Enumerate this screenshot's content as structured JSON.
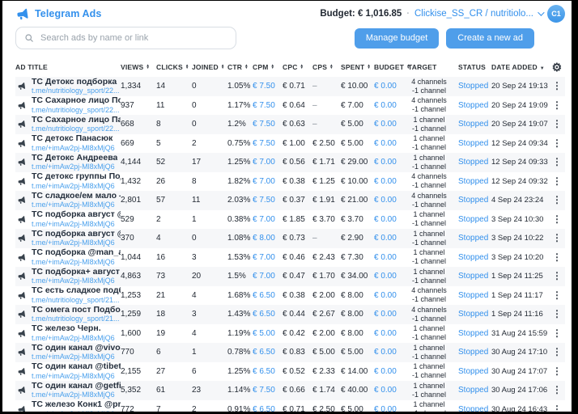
{
  "header": {
    "app_title": "Telegram Ads",
    "budget_label": "Budget:",
    "budget_value": "€ 1,016.85",
    "account": "Clickise_SS_CR / nutritiolo...",
    "avatar": "C1"
  },
  "toolbar": {
    "search_placeholder": "Search ads by name or link",
    "manage_budget_label": "Manage budget",
    "create_ad_label": "Create a new ad"
  },
  "icons": {
    "logo": "megaphone-icon",
    "row": "megaphone-icon",
    "search": "search-icon",
    "account_chevron": "chevron-down-icon",
    "settings": "gear-icon",
    "row_menu": "kebab-menu-icon",
    "sortable": "sort-arrows-icon",
    "date_sorted": "sort-desc-icon"
  },
  "colors": {
    "accent": "#3390ec",
    "button": "#4f9eea",
    "link": "#4aa0ec",
    "row_stripe": "#f6f7f9",
    "text": "#1f2630",
    "muted": "#99a2ab",
    "frame": "#000000"
  },
  "table": {
    "columns": [
      {
        "key": "title",
        "label": "AD TITLE",
        "sort": "none"
      },
      {
        "key": "views",
        "label": "VIEWS",
        "sort": "both"
      },
      {
        "key": "clicks",
        "label": "CLICKS",
        "sort": "both"
      },
      {
        "key": "joined",
        "label": "JOINED",
        "sort": "both"
      },
      {
        "key": "ctr",
        "label": "CTR",
        "sort": "both"
      },
      {
        "key": "cpm",
        "label": "CPM",
        "sort": "both"
      },
      {
        "key": "cpc",
        "label": "CPC",
        "sort": "both"
      },
      {
        "key": "cps",
        "label": "CPS",
        "sort": "both"
      },
      {
        "key": "spent",
        "label": "SPENT",
        "sort": "both"
      },
      {
        "key": "budget",
        "label": "BUDGET",
        "sort": "both"
      },
      {
        "key": "target",
        "label": "TARGET",
        "sort": "none"
      },
      {
        "key": "status",
        "label": "STATUS",
        "sort": "none"
      },
      {
        "key": "date",
        "label": "DATE ADDED",
        "sort": "desc"
      }
    ],
    "rows": [
      {
        "title": "ТС Детокс подборка",
        "link": "t.me/nutritiology_sport/22...",
        "views": "1,334",
        "clicks": "14",
        "joined": "0",
        "ctr": "1.05%",
        "cpm": "€ 7.50",
        "cpc": "€ 0.71",
        "cps": "–",
        "spent": "€ 10.00",
        "budget": "€ 0.00",
        "target1": "4 channels",
        "target2": "-1 channel",
        "status": "Stopped",
        "date": "20 Sep 24 19:13"
      },
      {
        "title": "ТС Сахарное лицо Под...",
        "link": "t.me/nutritiology_sport/22...",
        "views": "937",
        "clicks": "11",
        "joined": "0",
        "ctr": "1.17%",
        "cpm": "€ 7.50",
        "cpc": "€ 0.64",
        "cps": "–",
        "spent": "€ 7.00",
        "budget": "€ 0.00",
        "target1": "4 channels",
        "target2": "-1 channel",
        "status": "Stopped",
        "date": "20 Sep 24 19:09"
      },
      {
        "title": "ТС Сахарное лицо Пан...",
        "link": "t.me/nutritiology_sport/22...",
        "views": "668",
        "clicks": "8",
        "joined": "0",
        "ctr": "1.2%",
        "cpm": "€ 7.50",
        "cpc": "€ 0.63",
        "cps": "–",
        "spent": "€ 5.00",
        "budget": "€ 0.00",
        "target1": "1 channel",
        "target2": "-1 channel",
        "status": "Stopped",
        "date": "20 Sep 24 19:07"
      },
      {
        "title": "ТС детокс Панасюк",
        "link": "t.me/+imAw2pj-Ml8xMjQ6",
        "views": "669",
        "clicks": "5",
        "joined": "2",
        "ctr": "0.75%",
        "cpm": "€ 7.50",
        "cpc": "€ 1.00",
        "cps": "€ 2.50",
        "spent": "€ 5.00",
        "budget": "€ 0.00",
        "target1": "1 channel",
        "target2": "-1 channel",
        "status": "Stopped",
        "date": "12 Sep 24 09:34"
      },
      {
        "title": "ТС Детокс Андреева",
        "link": "t.me/+imAw2pj-Ml8xMjQ6",
        "views": "4,144",
        "clicks": "52",
        "joined": "17",
        "ctr": "1.25%",
        "cpm": "€ 7.00",
        "cpc": "€ 0.56",
        "cps": "€ 1.71",
        "spent": "€ 29.00",
        "budget": "€ 0.00",
        "target1": "1 channel",
        "target2": "-1 channel",
        "status": "Stopped",
        "date": "12 Sep 24 09:33"
      },
      {
        "title": "ТС детокс группы Под...",
        "link": "t.me/+imAw2pj-Ml8xMjQ6",
        "views": "1,432",
        "clicks": "26",
        "joined": "8",
        "ctr": "1.82%",
        "cpm": "€ 7.00",
        "cpc": "€ 0.38",
        "cps": "€ 1.25",
        "spent": "€ 10.00",
        "budget": "€ 0.00",
        "target1": "4 channels",
        "target2": "-1 channel",
        "status": "Stopped",
        "date": "12 Sep 24 09:32"
      },
      {
        "title": "ТС сладкое/ем мало - ...",
        "link": "t.me/+imAw2pj-Ml8xMjQ6",
        "views": "2,801",
        "clicks": "57",
        "joined": "11",
        "ctr": "2.03%",
        "cpm": "€ 7.50",
        "cpc": "€ 0.37",
        "cps": "€ 1.91",
        "spent": "€ 21.00",
        "budget": "€ 0.00",
        "target1": "4 channels",
        "target2": "-1 channel",
        "status": "Stopped",
        "date": "4 Sep 24 23:24"
      },
      {
        "title": "ТС подборка август @...",
        "link": "t.me/+imAw2pj-Ml8xMjQ6",
        "views": "529",
        "clicks": "2",
        "joined": "1",
        "ctr": "0.38%",
        "cpm": "€ 7.00",
        "cpc": "€ 1.85",
        "cps": "€ 3.70",
        "spent": "€ 3.70",
        "budget": "€ 0.00",
        "target1": "1 channel",
        "target2": "-1 channel",
        "status": "Stopped",
        "date": "3 Sep 24 10:30"
      },
      {
        "title": "ТС подборка август @l...",
        "link": "t.me/+imAw2pj-Ml8xMjQ6",
        "views": "370",
        "clicks": "4",
        "joined": "0",
        "ctr": "1.08%",
        "cpm": "€ 8.00",
        "cpc": "€ 0.73",
        "cps": "–",
        "spent": "€ 2.90",
        "budget": "€ 0.00",
        "target1": "1 channel",
        "target2": "-1 channel",
        "status": "Stopped",
        "date": "3 Sep 24 10:22"
      },
      {
        "title": "ТС подборка @man_ac...",
        "link": "t.me/+imAw2pj-Ml8xMjQ6",
        "views": "1,044",
        "clicks": "16",
        "joined": "3",
        "ctr": "1.53%",
        "cpm": "€ 7.00",
        "cpc": "€ 0.46",
        "cps": "€ 2.43",
        "spent": "€ 7.30",
        "budget": "€ 0.00",
        "target1": "1 channel",
        "target2": "-1 channel",
        "status": "Stopped",
        "date": "3 Sep 24 10:20"
      },
      {
        "title": "ТС подборка+ август",
        "link": "t.me/+imAw2pj-Ml8xMjQ6",
        "views": "4,863",
        "clicks": "73",
        "joined": "20",
        "ctr": "1.5%",
        "cpm": "€ 7.00",
        "cpc": "€ 0.47",
        "cps": "€ 1.70",
        "spent": "€ 34.00",
        "budget": "€ 0.00",
        "target1": "1 channel",
        "target2": "-1 channel",
        "status": "Stopped",
        "date": "1 Sep 24 11:25"
      },
      {
        "title": "ТС есть сладкое подбо...",
        "link": "t.me/nutritiology_sport/21...",
        "views": "1,253",
        "clicks": "21",
        "joined": "4",
        "ctr": "1.68%",
        "cpm": "€ 6.50",
        "cpc": "€ 0.38",
        "cps": "€ 2.00",
        "spent": "€ 8.00",
        "budget": "€ 0.00",
        "target1": "4 channels",
        "target2": "-1 channel",
        "status": "Stopped",
        "date": "1 Sep 24 11:17"
      },
      {
        "title": "ТС омега пост Подбор...",
        "link": "t.me/nutritiology_sport/21...",
        "views": "1,259",
        "clicks": "18",
        "joined": "3",
        "ctr": "1.43%",
        "cpm": "€ 6.50",
        "cpc": "€ 0.44",
        "cps": "€ 2.67",
        "spent": "€ 8.00",
        "budget": "€ 0.00",
        "target1": "4 channels",
        "target2": "-1 channel",
        "status": "Stopped",
        "date": "1 Sep 24 11:16"
      },
      {
        "title": "ТС железо Черн.",
        "link": "t.me/+imAw2pj-Ml8xMjQ6",
        "views": "1,600",
        "clicks": "19",
        "joined": "4",
        "ctr": "1.19%",
        "cpm": "€ 5.00",
        "cpc": "€ 0.42",
        "cps": "€ 2.00",
        "spent": "€ 8.00",
        "budget": "€ 0.00",
        "target1": "1 channel",
        "target2": "-1 channel",
        "status": "Stopped",
        "date": "31 Aug 24 15:59"
      },
      {
        "title": "ТС один канал @vivoyo...",
        "link": "t.me/+imAw2pj-Ml8xMjQ6",
        "views": "770",
        "clicks": "6",
        "joined": "1",
        "ctr": "0.78%",
        "cpm": "€ 6.50",
        "cpc": "€ 0.83",
        "cps": "€ 5.00",
        "spent": "€ 5.00",
        "budget": "€ 0.00",
        "target1": "1 channel",
        "target2": "-1 channel",
        "status": "Stopped",
        "date": "30 Aug 24 17:10"
      },
      {
        "title": "ТС один канал @tibetd...",
        "link": "t.me/+imAw2pj-Ml8xMjQ6",
        "views": "2,155",
        "clicks": "27",
        "joined": "6",
        "ctr": "1.25%",
        "cpm": "€ 6.50",
        "cpc": "€ 0.52",
        "cps": "€ 2.33",
        "spent": "€ 14.00",
        "budget": "€ 0.00",
        "target1": "1 channel",
        "target2": "-1 channel",
        "status": "Stopped",
        "date": "30 Aug 24 17:07"
      },
      {
        "title": "ТС один канал @getfit_...",
        "link": "t.me/+imAw2pj-Ml8xMjQ6",
        "views": "5,352",
        "clicks": "61",
        "joined": "23",
        "ctr": "1.14%",
        "cpm": "€ 7.50",
        "cpc": "€ 0.66",
        "cps": "€ 1.74",
        "spent": "€ 40.00",
        "budget": "€ 0.00",
        "target1": "1 channel",
        "target2": "-1 channel",
        "status": "Stopped",
        "date": "30 Aug 24 17:06"
      },
      {
        "title": "ТС железо Конк1 @pro...",
        "link": "t.me/+imAw2pj-Ml8xMjQ6",
        "views": "772",
        "clicks": "7",
        "joined": "2",
        "ctr": "0.91%",
        "cpm": "€ 6.50",
        "cpc": "€ 0.71",
        "cps": "€ 2.50",
        "spent": "€ 5.00",
        "budget": "€ 0.00",
        "target1": "1 channel",
        "target2": "-1 channel",
        "status": "Stopped",
        "date": "30 Aug 24 16:43"
      }
    ]
  }
}
